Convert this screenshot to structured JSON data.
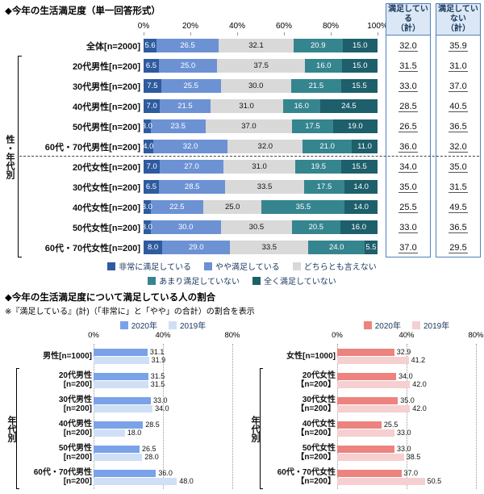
{
  "bottom_section": {
    "title": "◆今年の生活満足度について満足している人の割合",
    "note": "※『満足している』(計)（「非常に」と「やや」の合計）の割合を表示"
  },
  "accent_colors": {
    "summary_box_border": "#4f81bd",
    "summary_header_bg": "#dbe7f4"
  },
  "chart_data": [
    {
      "type": "bar",
      "variant": "horizontal-stacked",
      "title": "◆今年の生活満足度（単一回答形式）",
      "xlim": [
        0,
        100
      ],
      "x_ticks": [
        "0%",
        "20%",
        "40%",
        "60%",
        "80%",
        "100%"
      ],
      "side_label": "性・年代別",
      "categories": [
        "全体[n=2000]",
        "20代男性[n=200]",
        "30代男性[n=200]",
        "40代男性[n=200]",
        "50代男性[n=200]",
        "60代・70代男性[n=200]",
        "20代女性[n=200]",
        "30代女性[n=200]",
        "40代女性[n=200]",
        "50代女性[n=200]",
        "60代・70代女性[n=200]"
      ],
      "series": [
        {
          "name": "非常に満足している",
          "color": "#2e5b9f",
          "values": [
            5.6,
            6.5,
            7.5,
            7.0,
            3.0,
            4.0,
            7.0,
            6.5,
            3.0,
            3.0,
            8.0
          ]
        },
        {
          "name": "やや満足している",
          "color": "#6c92d4",
          "values": [
            26.5,
            25.0,
            25.5,
            21.5,
            23.5,
            32.0,
            27.0,
            28.5,
            22.5,
            30.0,
            29.0
          ]
        },
        {
          "name": "どちらとも言えない",
          "color": "#d9d9d9",
          "values": [
            32.1,
            37.5,
            30.0,
            31.0,
            37.0,
            32.0,
            31.0,
            33.5,
            25.0,
            30.5,
            33.5
          ]
        },
        {
          "name": "あまり満足していない",
          "color": "#35858f",
          "values": [
            20.9,
            16.0,
            21.5,
            16.0,
            17.5,
            21.0,
            19.5,
            17.5,
            35.5,
            20.5,
            24.0
          ]
        },
        {
          "name": "全く満足していない",
          "color": "#1d5f6b",
          "values": [
            15.0,
            15.0,
            15.5,
            24.5,
            19.0,
            11.0,
            15.5,
            14.0,
            14.0,
            16.0,
            5.5
          ]
        }
      ],
      "legend_rows": [
        [
          0,
          1,
          2
        ],
        [
          3,
          4
        ]
      ],
      "summary_columns": [
        {
          "header_line1": "満足している",
          "header_line2": "（計）",
          "values": [
            "32.0",
            "31.5",
            "33.0",
            "28.5",
            "26.5",
            "36.0",
            "34.0",
            "35.0",
            "25.5",
            "33.0",
            "37.0"
          ]
        },
        {
          "header_line1": "満足していない",
          "header_line2": "（計）",
          "values": [
            "35.9",
            "31.0",
            "37.0",
            "40.5",
            "36.5",
            "32.0",
            "35.0",
            "31.5",
            "49.5",
            "36.5",
            "29.5"
          ]
        }
      ],
      "group_divider_after_row": 5
    },
    {
      "type": "bar",
      "variant": "horizontal-grouped",
      "xlim": [
        0,
        80
      ],
      "x_ticks": [
        "0%",
        "40%",
        "80%"
      ],
      "side_label": "年代別",
      "categories": [
        "男性[n=1000]",
        "20代男性\n[n=200]",
        "30代男性\n[n=200]",
        "40代男性\n[n=200]",
        "50代男性\n[n=200]",
        "60代・70代男性\n[n=200]"
      ],
      "series": [
        {
          "name": "2020年",
          "color": "#7aa2e8",
          "values": [
            31.1,
            31.5,
            33.0,
            28.5,
            26.5,
            36.0
          ]
        },
        {
          "name": "2019年",
          "color": "#cfdff6",
          "values": [
            31.9,
            31.5,
            34.0,
            18.0,
            28.0,
            48.0
          ]
        }
      ]
    },
    {
      "type": "bar",
      "variant": "horizontal-grouped",
      "xlim": [
        0,
        80
      ],
      "x_ticks": [
        "0%",
        "40%",
        "80%"
      ],
      "side_label": "年代別",
      "categories": [
        "女性[n=1000]",
        "20代女性\n【n=200】",
        "30代女性\n【n=200】",
        "40代女性\n【n=200】",
        "50代女性\n【n=200】",
        "60代・70代女性\n【n=200】"
      ],
      "series": [
        {
          "name": "2020年",
          "color": "#ec837f",
          "values": [
            32.9,
            34.0,
            35.0,
            25.5,
            33.0,
            37.0
          ]
        },
        {
          "name": "2019年",
          "color": "#f6cfd1",
          "values": [
            41.2,
            42.0,
            42.0,
            33.0,
            38.5,
            50.5
          ]
        }
      ]
    }
  ]
}
